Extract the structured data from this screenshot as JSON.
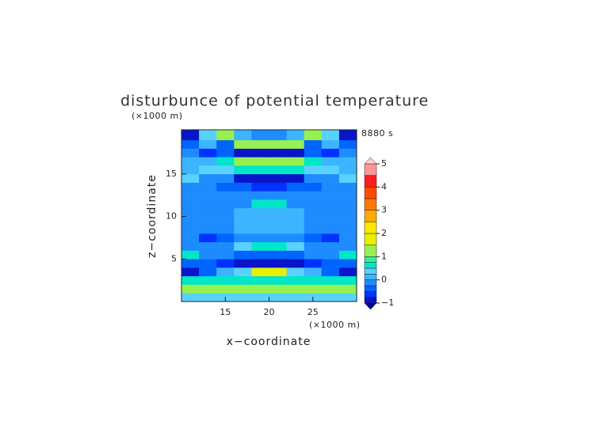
{
  "chart_data": {
    "type": "contour",
    "title": "disturbunce of potential temperature",
    "y_unit": "(×1000 m)",
    "x_unit": "(×1000 m)",
    "time_label": "8880 s",
    "x_label": "x−coordinate",
    "y_label": "z−coordinate",
    "xlim": [
      10,
      30
    ],
    "ylim": [
      0,
      20.2
    ],
    "xticks": [
      15,
      20,
      25
    ],
    "yticks": [
      5,
      10,
      15
    ],
    "x": [
      11,
      13,
      15,
      17,
      19,
      21,
      23,
      25,
      27,
      29
    ],
    "y": [
      0.5,
      1.5,
      2.5,
      3.5,
      4.5,
      5.5,
      6.5,
      7.5,
      8.5,
      9.5,
      10.5,
      11.5,
      12.5,
      13.5,
      14.5,
      15.5,
      16.5,
      17.5,
      18.5,
      19.5
    ],
    "values": [
      [
        0.4,
        0.4,
        0.4,
        0.4,
        0.4,
        0.4,
        0.4,
        0.4,
        0.4,
        0.4
      ],
      [
        1.2,
        1.2,
        1.2,
        1.2,
        1.2,
        1.2,
        1.2,
        1.2,
        1.2,
        1.2
      ],
      [
        0.6,
        0.6,
        0.7,
        0.7,
        0.7,
        0.7,
        0.7,
        0.7,
        0.6,
        0.6
      ],
      [
        -0.8,
        -0.5,
        0.1,
        0.3,
        1.5,
        1.5,
        0.3,
        0.1,
        -0.5,
        -0.8
      ],
      [
        -0.3,
        -0.3,
        -0.6,
        -0.9,
        -0.9,
        -0.9,
        -0.9,
        -0.6,
        -0.3,
        -0.3
      ],
      [
        0.6,
        -0.2,
        -0.2,
        -0.3,
        -0.3,
        -0.3,
        -0.3,
        -0.2,
        -0.2,
        0.6
      ],
      [
        -0.1,
        -0.2,
        -0.1,
        0.3,
        0.7,
        0.7,
        0.3,
        -0.1,
        -0.2,
        -0.1
      ],
      [
        -0.2,
        -0.7,
        -0.3,
        -0.1,
        -0.1,
        -0.1,
        -0.1,
        -0.3,
        -0.7,
        -0.2
      ],
      [
        -0.1,
        -0.1,
        -0.1,
        0.1,
        0.1,
        0.1,
        0.1,
        -0.1,
        -0.1,
        -0.1
      ],
      [
        -0.1,
        -0.1,
        -0.1,
        0.1,
        0.1,
        0.1,
        0.1,
        -0.1,
        -0.1,
        -0.1
      ],
      [
        -0.1,
        -0.1,
        -0.1,
        0.1,
        0.1,
        0.1,
        0.1,
        -0.1,
        -0.1,
        -0.1
      ],
      [
        -0.1,
        -0.1,
        -0.1,
        -0.1,
        0.6,
        0.6,
        -0.1,
        -0.1,
        -0.1,
        -0.1
      ],
      [
        -0.1,
        -0.1,
        -0.2,
        -0.2,
        -0.2,
        -0.2,
        -0.2,
        -0.2,
        -0.1,
        -0.1
      ],
      [
        -0.1,
        -0.2,
        -0.3,
        -0.5,
        -0.6,
        -0.6,
        -0.5,
        -0.3,
        -0.2,
        -0.1
      ],
      [
        0.3,
        -0.1,
        -0.1,
        -0.8,
        -0.8,
        -0.8,
        -0.8,
        -0.1,
        -0.1,
        0.3
      ],
      [
        0.1,
        0.3,
        0.3,
        0.6,
        0.7,
        0.7,
        0.6,
        0.3,
        0.3,
        0.1
      ],
      [
        0.1,
        0.2,
        0.6,
        1.2,
        1.2,
        1.2,
        1.2,
        0.6,
        0.2,
        0.1
      ],
      [
        -0.2,
        -0.6,
        -0.4,
        -0.8,
        -0.8,
        -0.8,
        -0.8,
        -0.4,
        -0.6,
        -0.2
      ],
      [
        -0.3,
        0.2,
        -0.5,
        1.3,
        1.3,
        1.3,
        1.3,
        -0.5,
        0.2,
        -0.3
      ],
      [
        -0.8,
        0.3,
        1.2,
        0.2,
        -0.2,
        -0.2,
        0.2,
        1.2,
        0.3,
        -0.8
      ]
    ],
    "levels": [
      -1,
      -0.75,
      -0.5,
      -0.25,
      0,
      0.25,
      0.5,
      0.75,
      1,
      1.5,
      2,
      2.5,
      3,
      3.5,
      4,
      4.5,
      5
    ],
    "colors": [
      "#0a14c8",
      "#0032ff",
      "#0064ff",
      "#1e8cff",
      "#3cb4ff",
      "#5ad2ff",
      "#00e6c8",
      "#32f0a0",
      "#96f050",
      "#e6f000",
      "#ffe600",
      "#ffaa00",
      "#ff7800",
      "#ff4b00",
      "#ff1e1e",
      "#ff9696"
    ],
    "under_color": "#000096",
    "over_color": "#ffd2d2",
    "cbar_ticks": [
      {
        "value": -1,
        "label": "−1"
      },
      0,
      1,
      2,
      3,
      4,
      5
    ]
  }
}
